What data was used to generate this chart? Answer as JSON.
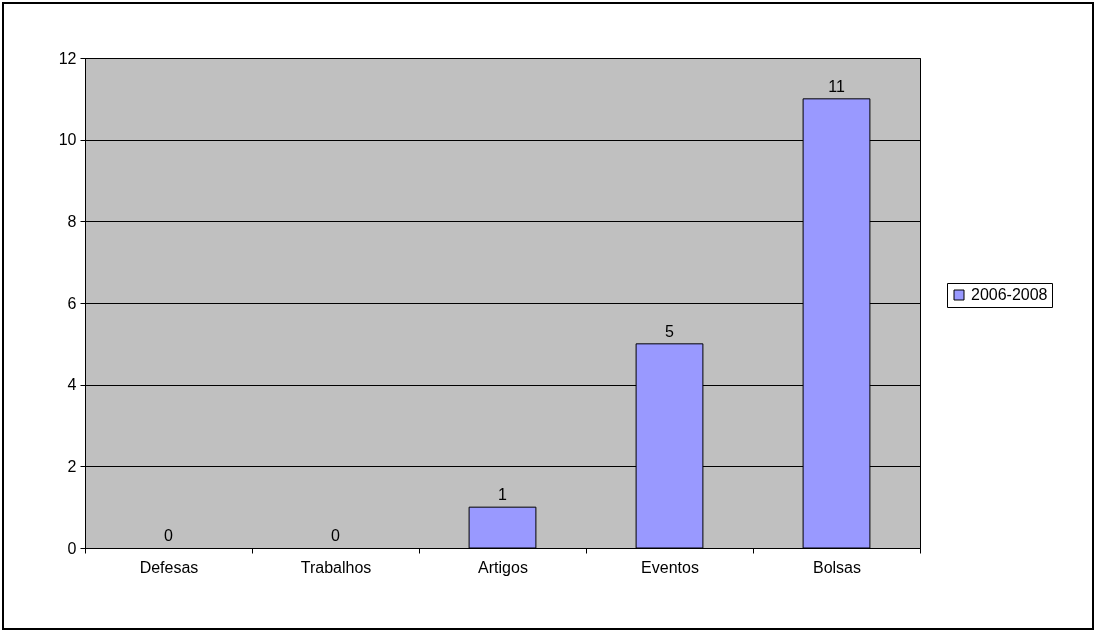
{
  "chart_data": {
    "type": "bar",
    "categories": [
      "Defesas",
      "Trabalhos",
      "Artigos",
      "Eventos",
      "Bolsas"
    ],
    "series": [
      {
        "name": "2006-2008",
        "color": "#9999ff",
        "values": [
          0,
          0,
          1,
          5,
          11
        ]
      }
    ],
    "ylim": [
      0,
      12
    ],
    "yticks": [
      0,
      2,
      4,
      6,
      8,
      10,
      12
    ],
    "grid": "y",
    "legend": "right",
    "data_labels": true
  }
}
